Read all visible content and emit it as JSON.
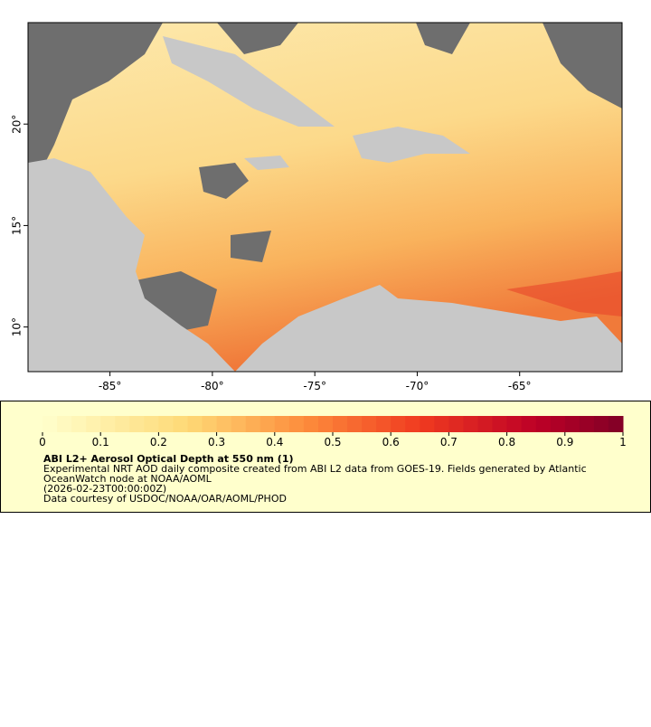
{
  "map": {
    "xlim": [
      -89,
      -60
    ],
    "ylim": [
      7.8,
      25
    ],
    "xticks": [
      {
        "value": -85,
        "label": "-85°"
      },
      {
        "value": -80,
        "label": "-80°"
      },
      {
        "value": -75,
        "label": "-75°"
      },
      {
        "value": -70,
        "label": "-70°"
      },
      {
        "value": -65,
        "label": "-65°"
      }
    ],
    "yticks": [
      {
        "value": 10,
        "label": "10°"
      },
      {
        "value": 15,
        "label": "15°"
      },
      {
        "value": 20,
        "label": "20°"
      }
    ]
  },
  "colorbar": {
    "lim": [
      0,
      1
    ],
    "ticks": [
      0,
      0.1,
      0.2,
      0.3,
      0.4,
      0.5,
      0.6,
      0.7,
      0.8,
      0.9,
      1
    ],
    "title": "ABI L2+ Aerosol Optical Depth at 550 nm (1)",
    "lines": [
      "Experimental NRT AOD daily composite created from ABI L2 data from GOES-19. Fields generated by Atlantic",
      "OceanWatch node at NOAA/AOML",
      "(2026-02-23T00:00:00Z)",
      "Data courtesy of USDOC/NOAA/OAR/AOML/PHOD"
    ]
  }
}
